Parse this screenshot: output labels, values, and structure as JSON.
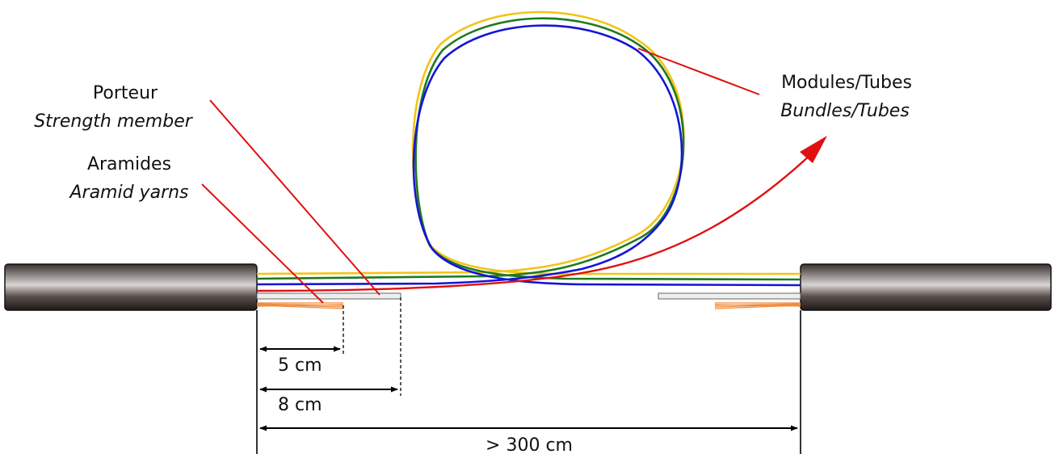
{
  "labels": {
    "porteur_fr": "Porteur",
    "porteur_en": "Strength member",
    "aramides_fr": "Aramides",
    "aramides_en": "Aramid yarns",
    "modules_fr": "Modules/Tubes",
    "modules_en": "Bundles/Tubes"
  },
  "dimensions": {
    "aramid_length": "5 cm",
    "strength_member_length": "8 cm",
    "total_length": "> 300 cm"
  },
  "colors": {
    "tube_yellow": "#f2c418",
    "tube_green": "#1f7a1f",
    "tube_blue": "#1515d6",
    "leader_red": "#e01010",
    "aramid_orange": "#f08a3c",
    "cable_dark": "#2a2220"
  }
}
